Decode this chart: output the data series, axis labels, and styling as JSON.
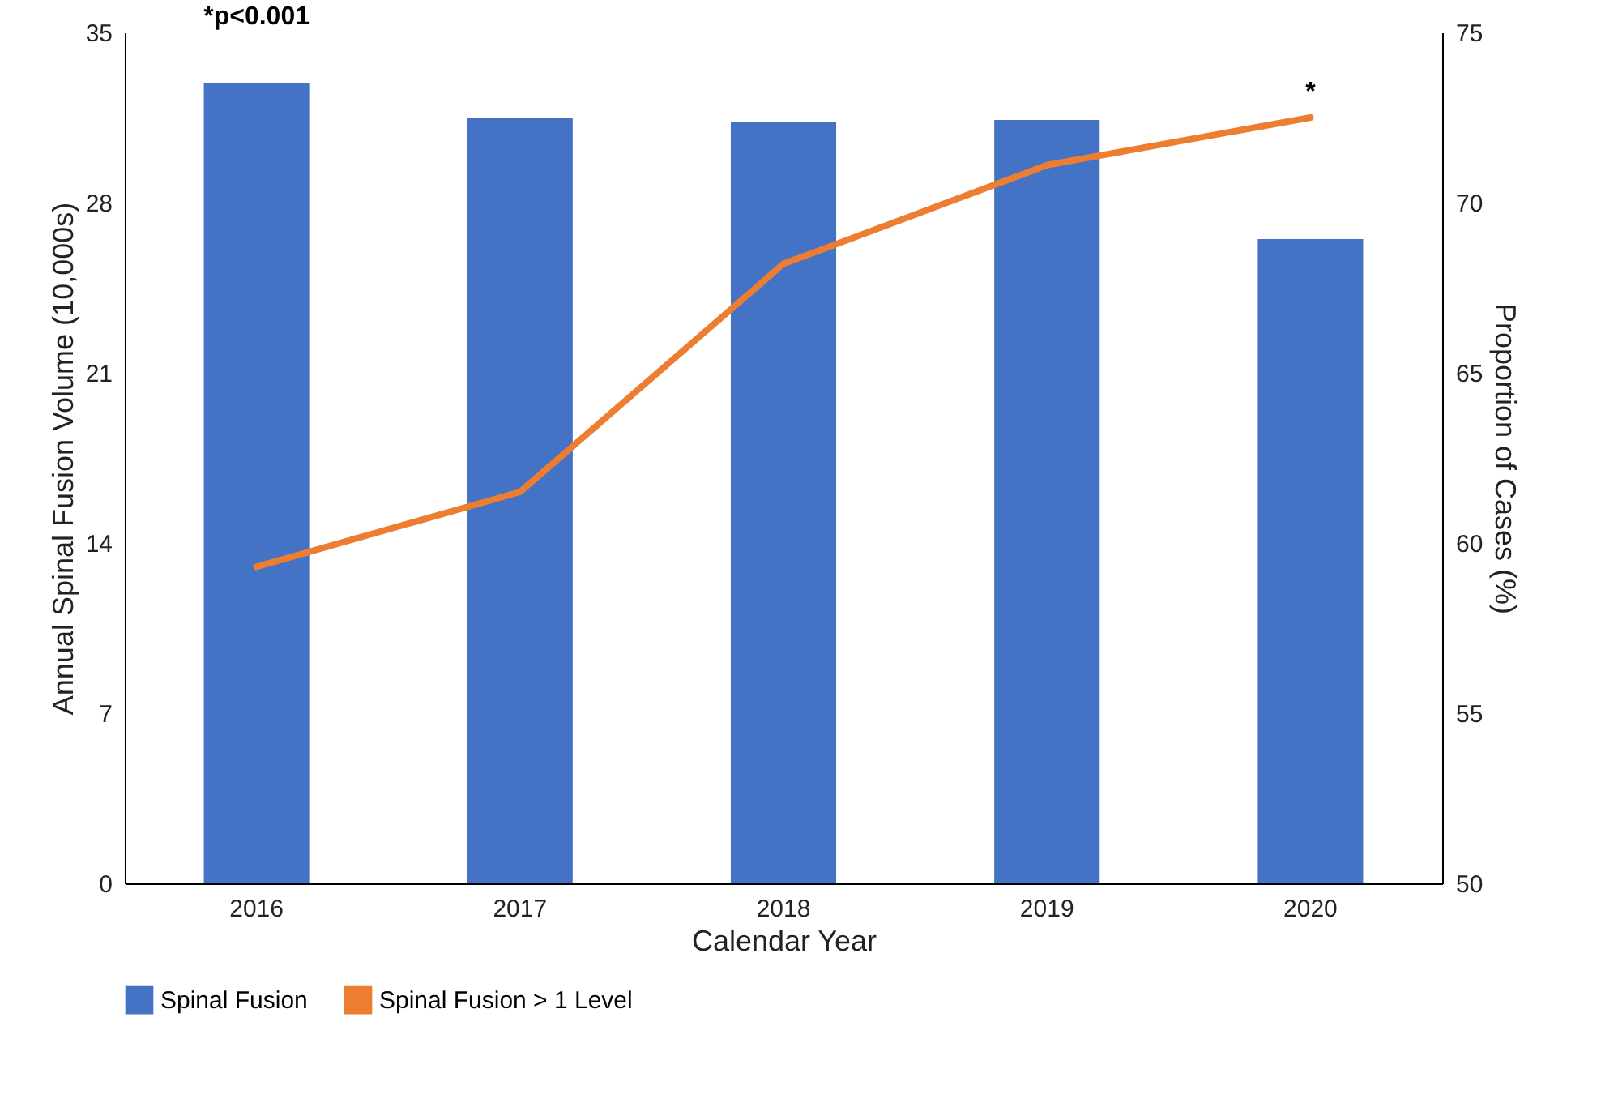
{
  "chart_data": {
    "type": "bar",
    "xlabel": "Calendar Year",
    "ylabel": "Annual Spinal Fusion Volume (10,000s)",
    "y2label": "Proportion of Cases (%)",
    "categories": [
      "2016",
      "2017",
      "2018",
      "2019",
      "2020"
    ],
    "series": [
      {
        "name": "Spinal Fusion",
        "color": "#4472c4",
        "values": [
          32.9,
          31.5,
          31.3,
          31.4,
          26.5
        ]
      },
      {
        "name": "Spinal Fusion > 1 Level",
        "type": "line",
        "axis": "y2",
        "color": "#ed7d31",
        "values": [
          59.3,
          61.5,
          68.2,
          71.1,
          72.5
        ]
      }
    ],
    "ylim": [
      0,
      35
    ],
    "yticks": [
      0,
      7,
      14,
      21,
      28,
      35
    ],
    "y2lim": [
      50,
      75
    ],
    "y2ticks": [
      50,
      55,
      60,
      65,
      70,
      75
    ],
    "annotations": [
      "*p<0.001",
      "*"
    ],
    "legend": "bottom",
    "grid": false
  }
}
